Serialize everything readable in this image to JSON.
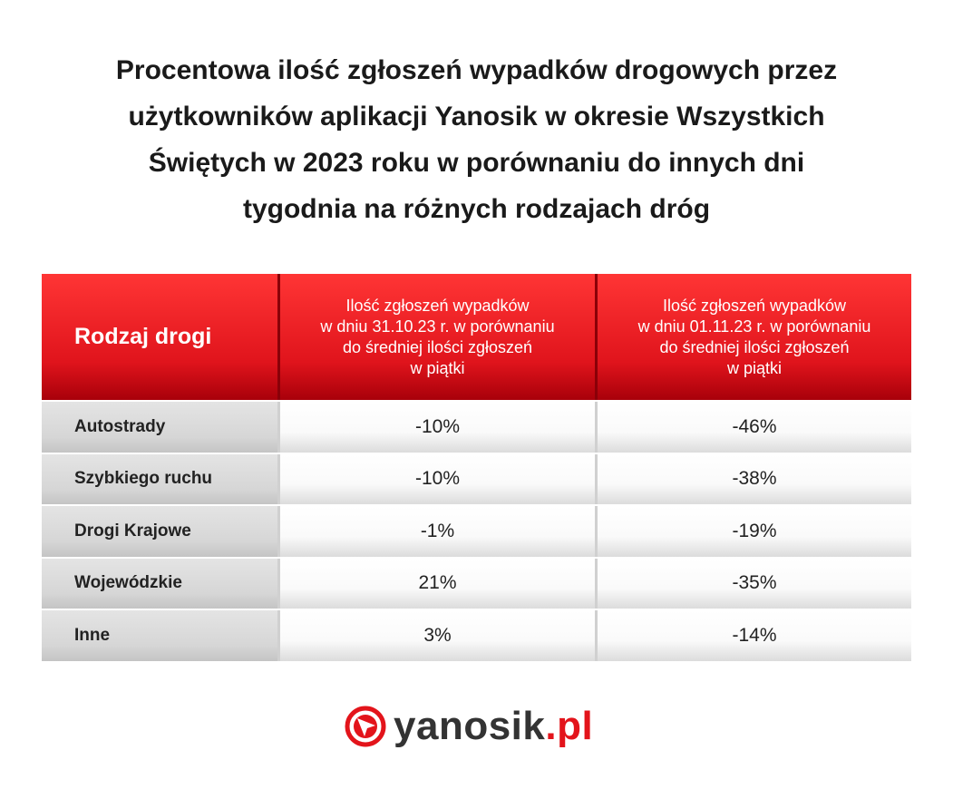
{
  "title": {
    "lines": [
      "Procentowa ilość zgłoszeń wypadków drogowych przez",
      "użytkowników aplikacji Yanosik w okresie Wszystkich",
      "Świętych w 2023 roku w porównaniu do innych dni",
      "tygodnia na różnych rodzajach dróg"
    ]
  },
  "table": {
    "header": [
      [
        "Rodzaj drogi"
      ],
      [
        "Ilość zgłoszeń wypadków",
        "w dniu 31.10.23 r. w porównaniu",
        "do średniej ilości zgłoszeń",
        "w piątki"
      ],
      [
        "Ilość zgłoszeń wypadków",
        "w dniu 01.11.23 r. w porównaniu",
        "do średniej ilości zgłoszeń",
        "w piątki"
      ]
    ],
    "rows": [
      [
        "Autostrady",
        "-10%",
        "-46%"
      ],
      [
        "Szybkiego ruchu",
        "-10%",
        "-38%"
      ],
      [
        "Drogi Krajowe",
        "-1%",
        "-19%"
      ],
      [
        "Wojewódzkie",
        "21%",
        "-35%"
      ],
      [
        "Inne",
        "3%",
        "-14%"
      ]
    ]
  },
  "logo": {
    "name": "yanosik",
    "suffix": ".pl"
  }
}
